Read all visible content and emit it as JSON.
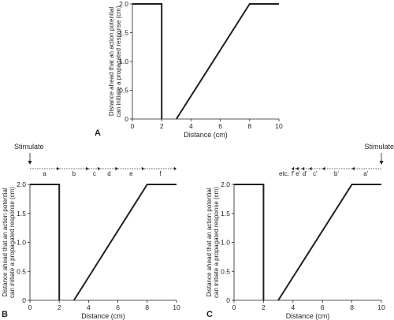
{
  "chart_data": [
    {
      "id": "A",
      "type": "line",
      "panel_label": "A",
      "xlabel": "Distance (cm)",
      "ylabel": [
        "Distance ahead that an action potential",
        "can initiate a propagated response  (cm)"
      ],
      "xlim": [
        0,
        10
      ],
      "ylim": [
        0,
        2.0
      ],
      "xticks": [
        0,
        2,
        4,
        6,
        8,
        10
      ],
      "yticks": [
        "0",
        "0.5",
        "1.0",
        "1.5",
        "2.0"
      ],
      "series": [
        {
          "x": [
            0,
            2,
            2
          ],
          "y": [
            2.0,
            2.0,
            0
          ]
        },
        {
          "x": [
            3,
            8,
            10
          ],
          "y": [
            0,
            2.0,
            2.0
          ]
        }
      ]
    },
    {
      "id": "B",
      "type": "line",
      "panel_label": "B",
      "xlabel": "Distance (cm)",
      "ylabel": [
        "Distance ahead that an action potential",
        "can initiate a propagated response  (cm)"
      ],
      "xlim": [
        0,
        10
      ],
      "ylim": [
        0,
        2.0
      ],
      "xticks": [
        0,
        2,
        4,
        6,
        8,
        10
      ],
      "yticks": [
        "0",
        "0.5",
        "1.0",
        "1.5",
        "2.0"
      ],
      "series": [
        {
          "x": [
            0,
            2,
            2
          ],
          "y": [
            2.0,
            2.0,
            0
          ]
        },
        {
          "x": [
            3,
            8,
            10
          ],
          "y": [
            0,
            2.0,
            2.0
          ]
        }
      ],
      "stimulate": {
        "label": "Stimulate",
        "x": 0
      },
      "propagation": {
        "direction": "right",
        "segments": [
          {
            "label": "a",
            "x0": 0.0,
            "x1": 2.0
          },
          {
            "label": "b",
            "x0": 2.0,
            "x1": 4.0
          },
          {
            "label": "c",
            "x0": 4.0,
            "x1": 4.8
          },
          {
            "label": "d",
            "x0": 4.8,
            "x1": 6.0
          },
          {
            "label": "e",
            "x0": 6.0,
            "x1": 7.8
          },
          {
            "label": "f",
            "x0": 7.8,
            "x1": 10.0
          }
        ]
      }
    },
    {
      "id": "C",
      "type": "line",
      "panel_label": "C",
      "xlabel": "Distance (cm)",
      "ylabel": [
        "Distance ahead that an action potential",
        "can initiate a propagated response  (cm)"
      ],
      "xlim": [
        0,
        10
      ],
      "ylim": [
        0,
        2.0
      ],
      "xticks": [
        0,
        2,
        4,
        6,
        8,
        10
      ],
      "yticks": [
        "0",
        "0.5",
        "1.0",
        "1.5",
        "2.0"
      ],
      "series": [
        {
          "x": [
            0,
            2,
            2
          ],
          "y": [
            2.0,
            2.0,
            0
          ]
        },
        {
          "x": [
            3,
            8,
            10
          ],
          "y": [
            0,
            2.0,
            2.0
          ]
        }
      ],
      "stimulate": {
        "label": "Stimulate",
        "x": 10
      },
      "propagation": {
        "direction": "left",
        "segments": [
          {
            "label": "a'",
            "x0": 10.0,
            "x1": 8.0
          },
          {
            "label": "b'",
            "x0": 8.0,
            "x1": 6.0
          },
          {
            "label": "c'",
            "x0": 6.0,
            "x1": 5.1
          },
          {
            "label": "d'",
            "x0": 5.1,
            "x1": 4.6
          },
          {
            "label": "e'",
            "x0": 4.6,
            "x1": 4.2
          },
          {
            "label": "f'",
            "x0": 4.2,
            "x1": 3.9
          }
        ],
        "tail_label": "etc."
      }
    }
  ]
}
